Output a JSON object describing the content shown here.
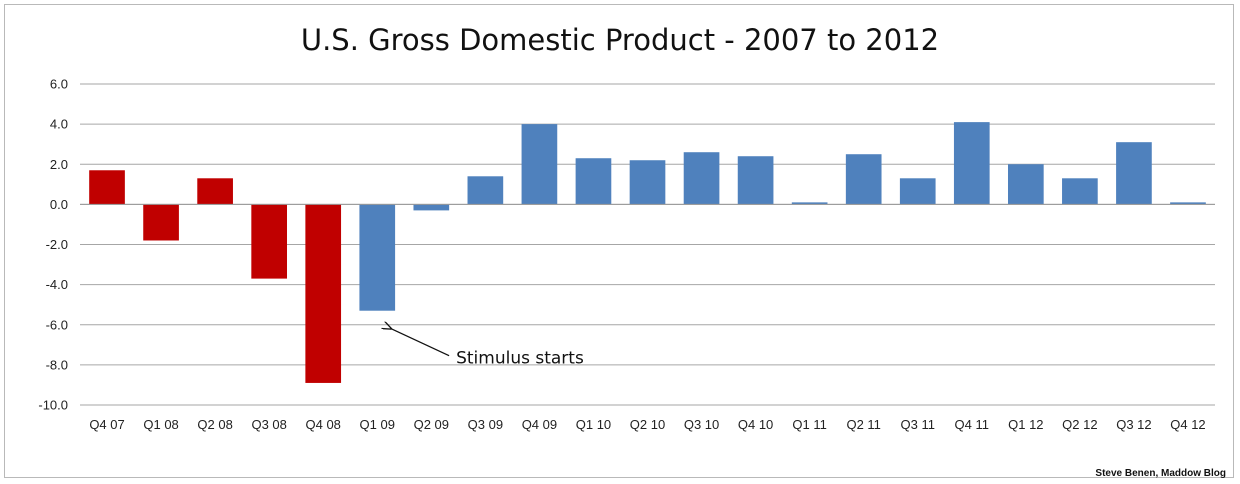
{
  "chart_data": {
    "type": "bar",
    "title": "U.S. Gross Domestic Product - 2007 to 2012",
    "xlabel": "",
    "ylabel": "",
    "ylim": [
      -10,
      6
    ],
    "yticks": [
      "6.0",
      "4.0",
      "2.0",
      "0.0",
      "-2.0",
      "-4.0",
      "-6.0",
      "-8.0",
      "-10.0"
    ],
    "ytick_values": [
      6,
      4,
      2,
      0,
      -2,
      -4,
      -6,
      -8,
      -10
    ],
    "grid": true,
    "categories": [
      "Q4 07",
      "Q1 08",
      "Q2 08",
      "Q3 08",
      "Q4 08",
      "Q1 09",
      "Q2 09",
      "Q3 09",
      "Q4 09",
      "Q1 10",
      "Q2 10",
      "Q3 10",
      "Q4 10",
      "Q1 11",
      "Q2 11",
      "Q3 11",
      "Q4 11",
      "Q1 12",
      "Q2 12",
      "Q3 12",
      "Q4 12"
    ],
    "values": [
      1.7,
      -1.8,
      1.3,
      -3.7,
      -8.9,
      -5.3,
      -0.3,
      1.4,
      4.0,
      2.3,
      2.2,
      2.6,
      2.4,
      0.1,
      2.5,
      1.3,
      4.1,
      2.0,
      1.3,
      3.1,
      0.1
    ],
    "bar_colors": [
      "#c00000",
      "#c00000",
      "#c00000",
      "#c00000",
      "#c00000",
      "#4f81bd",
      "#4f81bd",
      "#4f81bd",
      "#4f81bd",
      "#4f81bd",
      "#4f81bd",
      "#4f81bd",
      "#4f81bd",
      "#4f81bd",
      "#4f81bd",
      "#4f81bd",
      "#4f81bd",
      "#4f81bd",
      "#4f81bd",
      "#4f81bd",
      "#4f81bd"
    ],
    "annotation": {
      "text": "Stimulus starts",
      "category": "Q1 09"
    },
    "credit": "Steve Benen, Maddow Blog"
  }
}
